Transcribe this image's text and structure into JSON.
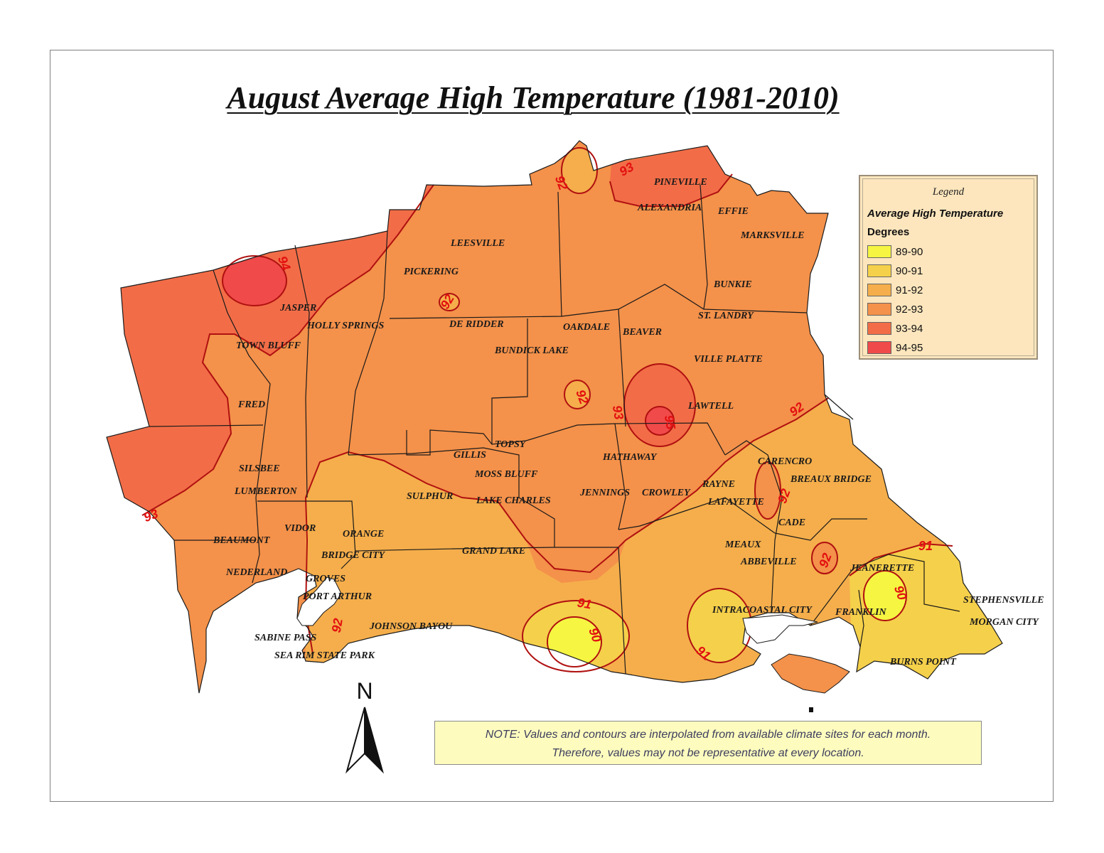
{
  "title": "August Average High Temperature (1981-2010)",
  "legend": {
    "title": "Legend",
    "subtitle": "Average High Temperature",
    "units": "Degrees",
    "items": [
      {
        "label": "89-90",
        "color": "#f5f542"
      },
      {
        "label": "90-91",
        "color": "#f5d04a"
      },
      {
        "label": "91-92",
        "color": "#f5ae4b"
      },
      {
        "label": "92-93",
        "color": "#f4914a"
      },
      {
        "label": "93-94",
        "color": "#f26d47"
      },
      {
        "label": "94-95",
        "color": "#f04a4a"
      }
    ]
  },
  "contour_labels": [
    "94",
    "93",
    "92",
    "92",
    "93",
    "92",
    "92",
    "93",
    "95",
    "92",
    "92",
    "92",
    "91",
    "90",
    "91",
    "91",
    "90",
    "92"
  ],
  "places": [
    "PINEVILLE",
    "ALEXANDRIA",
    "EFFIE",
    "MARKSVILLE",
    "LEESVILLE",
    "PICKERING",
    "BUNKIE",
    "JASPER",
    "ST. LANDRY",
    "HOLLY SPRINGS",
    "DE RIDDER",
    "OAKDALE",
    "BEAVER",
    "TOWN BLUFF",
    "BUNDICK LAKE",
    "VILLE PLATTE",
    "FRED",
    "LAWTELL",
    "TOPSY",
    "GILLIS",
    "HATHAWAY",
    "CARENCRO",
    "SILSBEE",
    "MOSS BLUFF",
    "BREAUX BRIDGE",
    "RAYNE",
    "LUMBERTON",
    "SULPHUR",
    "JENNINGS",
    "CROWLEY",
    "LAKE CHARLES",
    "LAFAYETTE",
    "CADE",
    "VIDOR",
    "ORANGE",
    "BEAUMONT",
    "MEAUX",
    "BRIDGE CITY",
    "GRAND LAKE",
    "ABBEVILLE",
    "JEANERETTE",
    "NEDERLAND",
    "GROVES",
    "PORT ARTHUR",
    "STEPHENSVILLE",
    "INTRACOASTAL CITY",
    "FRANKLIN",
    "MORGAN CITY",
    "JOHNSON BAYOU",
    "SABINE PASS",
    "SEA RIM STATE PARK",
    "BURNS POINT"
  ],
  "north_label": "N",
  "note_lines": [
    "NOTE: Values and contours are interpolated from available climate sites for each month.",
    "Therefore, values may not be representative at every location."
  ]
}
